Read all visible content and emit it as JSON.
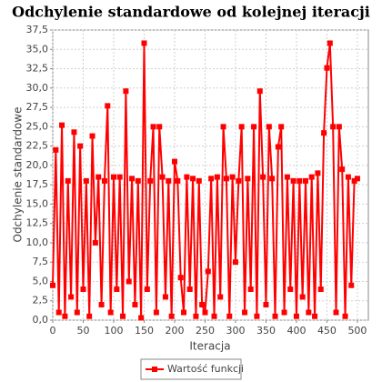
{
  "chart_data": {
    "type": "line",
    "title": "Odchylenie standardowe od kolejnej iteracji",
    "x_label": "Iteracja",
    "y_label": "Odchylenie standardowe",
    "xlim": [
      0,
      518
    ],
    "ylim": [
      0,
      37.5
    ],
    "xticks": [
      0,
      50,
      100,
      150,
      200,
      250,
      300,
      350,
      400,
      450,
      500
    ],
    "yticks": [
      {
        "value": 0,
        "label": "0,0"
      },
      {
        "value": 2.5,
        "label": "2,5"
      },
      {
        "value": 5,
        "label": "5,0"
      },
      {
        "value": 7.5,
        "label": "7,5"
      },
      {
        "value": 10,
        "label": "10,0"
      },
      {
        "value": 12.5,
        "label": "12,5"
      },
      {
        "value": 15,
        "label": "15,0"
      },
      {
        "value": 17.5,
        "label": "17,5"
      },
      {
        "value": 20,
        "label": "20,0"
      },
      {
        "value": 22.5,
        "label": "22,5"
      },
      {
        "value": 25,
        "label": "25,0"
      },
      {
        "value": 27.5,
        "label": "27,5"
      },
      {
        "value": 30,
        "label": "30,0"
      },
      {
        "value": 32.5,
        "label": "32,5"
      },
      {
        "value": 35,
        "label": "35,0"
      },
      {
        "value": 37.5,
        "label": "37,5"
      }
    ],
    "grid": true,
    "legend": "bottom",
    "x": [
      0,
      5,
      10,
      15,
      20,
      25,
      30,
      35,
      40,
      45,
      50,
      55,
      60,
      65,
      70,
      75,
      80,
      85,
      90,
      95,
      100,
      105,
      110,
      115,
      120,
      125,
      130,
      135,
      140,
      145,
      150,
      155,
      160,
      165,
      170,
      175,
      180,
      185,
      190,
      195,
      200,
      205,
      210,
      215,
      220,
      225,
      230,
      235,
      240,
      245,
      250,
      255,
      260,
      265,
      270,
      275,
      280,
      285,
      290,
      295,
      300,
      305,
      310,
      315,
      320,
      325,
      330,
      335,
      340,
      345,
      350,
      355,
      360,
      365,
      370,
      375,
      380,
      385,
      390,
      395,
      400,
      405,
      410,
      415,
      420,
      425,
      430,
      435,
      440,
      445,
      450,
      455,
      460,
      465,
      470,
      475,
      480,
      485,
      490,
      495,
      500
    ],
    "series": [
      {
        "name": "Wartość funkcji",
        "color": "#ff0000",
        "values": [
          4.5,
          22,
          1,
          25.2,
          0.5,
          18,
          3,
          24.3,
          1,
          22.5,
          4,
          18,
          0.5,
          23.8,
          10,
          18.5,
          2,
          18,
          27.7,
          1,
          18.5,
          4,
          18.5,
          0.5,
          29.6,
          5,
          18.3,
          2,
          18,
          0.3,
          35.8,
          4,
          18,
          25,
          1,
          25,
          18.5,
          3,
          18,
          0.5,
          20.5,
          18,
          5.5,
          1,
          18.5,
          4,
          18.3,
          0.5,
          18,
          2,
          1,
          6.3,
          18.3,
          0.5,
          18.5,
          3,
          25,
          18.3,
          0.5,
          18.5,
          7.5,
          18,
          25,
          1,
          18.3,
          4,
          25,
          0.5,
          29.6,
          18.5,
          2,
          25,
          18.3,
          0.5,
          22.4,
          25,
          1,
          18.5,
          4,
          18,
          0.5,
          18,
          3,
          18,
          1,
          18.5,
          0.5,
          19,
          4,
          24.2,
          32.6,
          35.8,
          25,
          1,
          25,
          19.5,
          0.5,
          18.5,
          4.5,
          18,
          18.3
        ]
      }
    ]
  }
}
